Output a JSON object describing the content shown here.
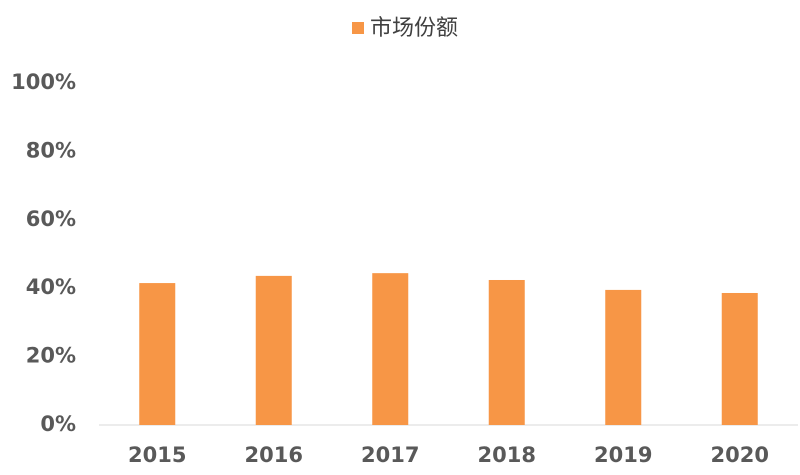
{
  "chart_data": {
    "type": "bar",
    "categories": [
      "2015",
      "2016",
      "2017",
      "2018",
      "2019",
      "2020"
    ],
    "series": [
      {
        "name": "市场份额",
        "color": "#f79646",
        "values": [
          41.5,
          43.6,
          44.4,
          42.4,
          39.5,
          38.6
        ]
      }
    ],
    "ylim": [
      0,
      100
    ],
    "yticks": [
      {
        "value": 0,
        "label": "0%"
      },
      {
        "value": 20,
        "label": "20%"
      },
      {
        "value": 40,
        "label": "40%"
      },
      {
        "value": 60,
        "label": "60%"
      },
      {
        "value": 80,
        "label": "80%"
      },
      {
        "value": 100,
        "label": "100%"
      }
    ],
    "grid": false,
    "legend": "top"
  }
}
